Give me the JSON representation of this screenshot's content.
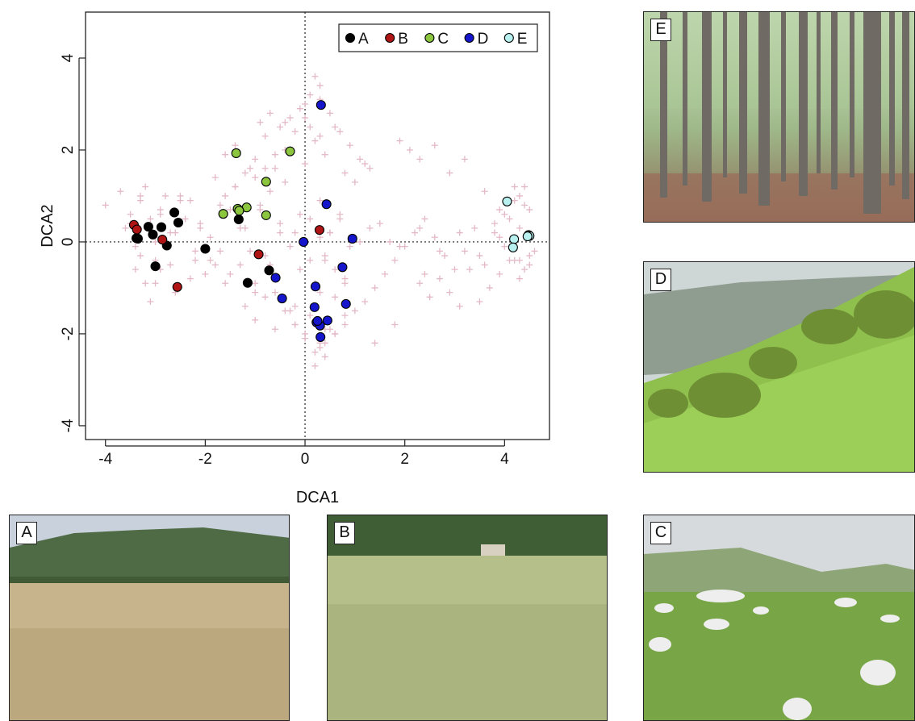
{
  "chart_data": {
    "type": "scatter",
    "xlabel": "DCA1",
    "ylabel": "DCA2",
    "xlim": [
      -4.4,
      4.9
    ],
    "ylim": [
      -4.3,
      5.0
    ],
    "xticks": [
      -4,
      -2,
      0,
      2,
      4
    ],
    "yticks": [
      -4,
      -2,
      0,
      2,
      4
    ],
    "xtick_labels": [
      "-4",
      "-2",
      "0",
      "2",
      "4"
    ],
    "ytick_labels": [
      "-4",
      "-2",
      "0",
      "2",
      "4"
    ],
    "reference_lines": {
      "x": 0,
      "y": 0,
      "style": "dotted"
    },
    "legend": {
      "placement": "top-right"
    },
    "background_points": {
      "marker": "plus",
      "color": "#e3b9c6",
      "x": [
        -4.0,
        -3.7,
        -3.6,
        -3.5,
        -3.4,
        -3.3,
        -3.2,
        -3.1,
        -3.0,
        -3.0,
        -3.2,
        -3.1,
        -2.9,
        -2.8,
        -2.7,
        -2.9,
        -3.3,
        -3.5,
        -2.6,
        -2.4,
        -2.3,
        -2.2,
        -2.5,
        -2.1,
        -2.0,
        -1.9,
        -1.8,
        -1.7,
        -1.6,
        -1.5,
        -1.4,
        -1.3,
        -1.2,
        -1.1,
        -1.0,
        -0.9,
        -0.8,
        -0.7,
        -0.6,
        -0.5,
        -0.4,
        -0.3,
        -0.2,
        -0.1,
        0.0,
        0.1,
        0.2,
        0.3,
        0.4,
        0.5,
        0.6,
        0.7,
        0.8,
        -1.6,
        -1.4,
        -1.2,
        -1.0,
        -0.8,
        -0.6,
        -0.4,
        -0.2,
        0.0,
        0.2,
        0.4,
        0.6,
        0.8,
        1.0,
        1.2,
        -1.2,
        -1.0,
        -0.8,
        -0.6,
        -0.4,
        -0.2,
        0.0,
        0.1,
        0.3,
        0.5,
        0.2,
        0.3,
        0.1,
        0.0,
        -0.1,
        -0.3,
        -0.5,
        -0.7,
        -0.9,
        0.3,
        0.5,
        0.7,
        0.9,
        1.1,
        1.3,
        0.2,
        0.4,
        0.6,
        0.8,
        1.0,
        1.2,
        1.4,
        1.6,
        1.8,
        2.0,
        2.2,
        2.4,
        2.6,
        2.8,
        3.0,
        3.2,
        3.4,
        3.6,
        3.8,
        4.0,
        4.2,
        4.4,
        4.5,
        2.3,
        2.5,
        2.7,
        2.9,
        3.1,
        3.3,
        3.5,
        3.7,
        3.9,
        4.1,
        4.3,
        4.5,
        4.6,
        4.2,
        4.3,
        4.4,
        4.1,
        4.3,
        4.0,
        4.2,
        4.4,
        4.5,
        3.8,
        3.9,
        1.9,
        2.1,
        2.3,
        2.6,
        2.9,
        3.2,
        3.6,
        -3.4,
        -3.0,
        -2.7,
        -2.3,
        -1.9,
        -1.5,
        -1.1,
        -0.7,
        -0.3,
        0.1,
        0.5,
        0.9,
        1.3,
        1.7,
        0.6,
        0.8,
        0.4,
        -0.2,
        -0.6,
        -1.0,
        -1.8,
        -2.2,
        -2.6,
        -3.0,
        -3.3,
        -2.9,
        -2.5,
        -2.1,
        -1.7,
        -1.3,
        -0.9,
        -0.5,
        -0.1,
        0.3,
        0.7,
        1.1,
        1.5,
        1.9,
        2.3,
        2.7,
        3.1,
        3.5,
        3.9,
        4.3,
        1.4,
        1.8,
        2.4,
        0.1,
        0.3,
        0.2,
        0.4,
        0.3,
        0.0,
        -0.2,
        0.2,
        0.3,
        0.4,
        0.6,
        0.8,
        -0.4,
        -0.6,
        -0.8,
        -1.0,
        -1.4,
        -1.6
      ],
      "y": [
        0.8,
        1.1,
        0.3,
        0.6,
        -0.1,
        0.9,
        1.2,
        0.5,
        -0.4,
        0.1,
        -0.9,
        -1.3,
        0.7,
        1.0,
        0.2,
        -0.6,
        -0.3,
        0.4,
        -1.1,
        0.5,
        0.9,
        -0.4,
        1.0,
        0.3,
        -0.7,
        0.1,
        1.4,
        -0.2,
        -0.9,
        0.7,
        1.2,
        -0.5,
        0.3,
        1.6,
        -1.1,
        0.8,
        -0.3,
        1.1,
        -0.8,
        0.4,
        1.3,
        -1.5,
        0.2,
        -0.6,
        1.7,
        0.5,
        -1.0,
        0.9,
        -0.4,
        0.2,
        -1.2,
        0.6,
        -0.8,
        1.9,
        2.1,
        1.5,
        1.8,
        2.3,
        1.6,
        2.0,
        2.4,
        2.7,
        2.2,
        1.9,
        2.5,
        1.5,
        1.3,
        1.7,
        -1.4,
        -1.7,
        -1.2,
        -1.9,
        -1.5,
        -1.8,
        -2.1,
        -1.6,
        -2.3,
        -1.9,
        3.6,
        3.4,
        3.2,
        3.0,
        2.9,
        2.7,
        2.5,
        2.8,
        2.6,
        3.1,
        2.8,
        2.4,
        2.1,
        1.8,
        1.6,
        -2.4,
        -2.2,
        -2.0,
        -1.8,
        -1.5,
        -1.3,
        -1.0,
        -0.7,
        -0.4,
        -0.1,
        0.2,
        0.5,
        0.1,
        -0.3,
        -0.6,
        -0.2,
        0.3,
        -0.5,
        0.2,
        0.6,
        0.9,
        1.2,
        0.7,
        -0.9,
        -1.2,
        -0.8,
        -1.1,
        -1.4,
        -0.6,
        -1.3,
        -1.0,
        -0.7,
        -0.4,
        -0.8,
        -0.5,
        -0.2,
        1.2,
        1.0,
        0.8,
        0.5,
        0.3,
        -0.1,
        -0.4,
        -0.6,
        -0.3,
        0.4,
        0.7,
        2.2,
        2.0,
        1.8,
        2.1,
        1.5,
        1.8,
        1.1,
        -0.6,
        -0.9,
        -0.5,
        -0.8,
        -0.4,
        -0.7,
        -0.2,
        -0.5,
        -0.1,
        -0.4,
        0.2,
        -0.1,
        0.3,
        0.0,
        -2.0,
        -1.6,
        -1.9,
        -1.4,
        -1.1,
        -0.9,
        -0.5,
        -0.2,
        0.2,
        0.0,
        1.0,
        0.6,
        0.9,
        0.4,
        0.8,
        0.3,
        0.7,
        0.2,
        0.6,
        0.1,
        0.5,
        0.0,
        0.4,
        -0.1,
        0.3,
        -0.2,
        0.2,
        -0.3,
        0.1,
        -0.4,
        -2.2,
        -1.8,
        -0.7,
        2.5,
        2.3,
        -2.7,
        -2.5,
        -2.2,
        -2.0,
        -1.8,
        -0.9,
        -1.1,
        -0.3,
        -0.6,
        -0.9,
        2.6,
        1.9,
        1.6,
        1.4,
        1.2,
        1.0
      ]
    },
    "series": [
      {
        "name": "A",
        "color": "#000000",
        "x": [
          -3.38,
          -3.14,
          -3.05,
          -3.0,
          -2.88,
          -2.77,
          -2.62,
          -2.54,
          -2.0,
          -1.33,
          -0.72,
          -1.15,
          -3.35
        ],
        "y": [
          0.08,
          0.33,
          0.16,
          -0.53,
          0.32,
          -0.08,
          0.64,
          0.42,
          -0.15,
          0.49,
          -0.62,
          -0.89,
          0.07
        ]
      },
      {
        "name": "B",
        "color": "#b01515",
        "x": [
          -3.43,
          -3.37,
          -2.86,
          -2.56,
          -0.93,
          0.29
        ],
        "y": [
          0.37,
          0.27,
          0.05,
          -0.98,
          -0.27,
          0.26
        ]
      },
      {
        "name": "C",
        "color": "#8cc63f",
        "x": [
          -1.38,
          -1.35,
          -0.3,
          -0.78,
          -1.64,
          -1.17,
          -1.32,
          -0.78
        ],
        "y": [
          1.93,
          0.72,
          1.97,
          1.31,
          0.61,
          0.75,
          0.68,
          0.58
        ]
      },
      {
        "name": "D",
        "color": "#1515cc",
        "x": [
          0.32,
          0.43,
          0.95,
          -0.03,
          0.75,
          -0.59,
          -0.46,
          0.21,
          0.19,
          0.23,
          0.45,
          0.3,
          0.25,
          0.82,
          0.31
        ],
        "y": [
          2.98,
          0.82,
          0.07,
          0.0,
          -0.55,
          -0.78,
          -1.23,
          -0.97,
          -1.42,
          -1.75,
          -1.71,
          -1.82,
          -1.72,
          -1.35,
          -2.07
        ]
      },
      {
        "name": "E",
        "color": "#b8f0f0",
        "x": [
          4.05,
          4.19,
          4.17,
          4.48,
          4.5,
          4.46
        ],
        "y": [
          0.88,
          0.06,
          -0.12,
          0.15,
          0.13,
          0.12
        ]
      }
    ]
  },
  "photos": [
    {
      "label": "E",
      "scene": "forest"
    },
    {
      "label": "D",
      "scene": "shrubby-slope"
    },
    {
      "label": "A",
      "scene": "hay-meadow"
    },
    {
      "label": "B",
      "scene": "tall-grassland"
    },
    {
      "label": "C",
      "scene": "rocky-pasture"
    }
  ],
  "colors": {
    "axis": "#222222",
    "sky": "#d8dde3",
    "grass": "#7fb33d",
    "forest": "#5d7a45"
  }
}
